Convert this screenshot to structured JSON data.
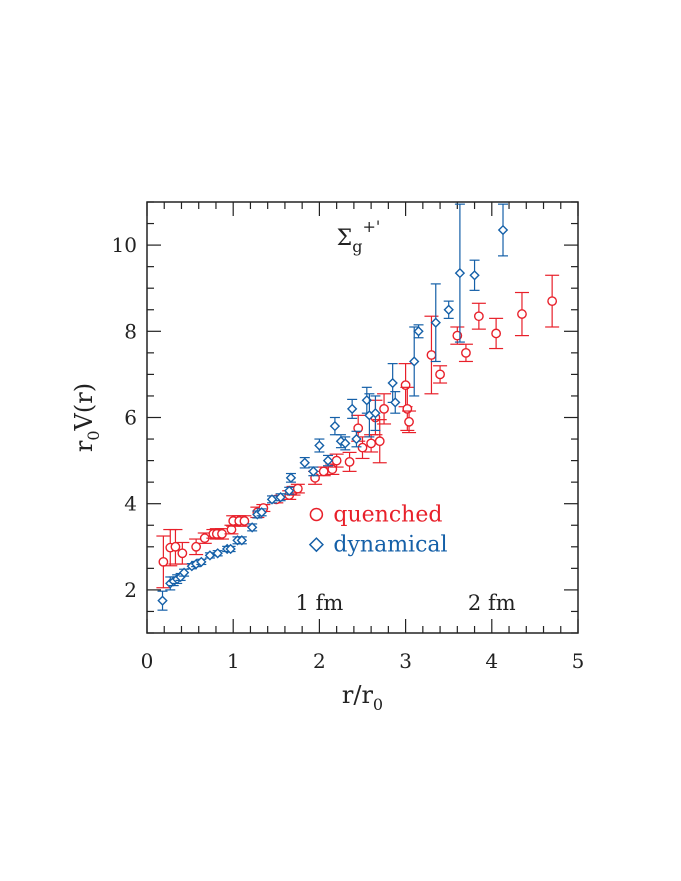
{
  "chart_data": {
    "type": "scatter",
    "xlim": [
      0,
      5
    ],
    "ylim": [
      1,
      11
    ],
    "x_ticks": [
      "0",
      "1",
      "2",
      "3",
      "4",
      "5"
    ],
    "y_ticks": [
      "2",
      "4",
      "6",
      "8",
      "10"
    ],
    "xlabel": {
      "main": "r/r",
      "sub": "0"
    },
    "ylabel": {
      "pre": "r",
      "sub": "0",
      "post": "V(r)"
    },
    "state_label": {
      "symbol": "Σ",
      "sub": "g",
      "sup": "+'"
    },
    "annotations": [
      {
        "text": "1 fm",
        "x": 2.0,
        "y": 1.7
      },
      {
        "text": "2 fm",
        "x": 4.0,
        "y": 1.7
      }
    ],
    "legend": {
      "position": "lower-center"
    },
    "colors": {
      "quenched": "#e8202a",
      "dynamical": "#1560a8",
      "axis": "#222222"
    },
    "series": [
      {
        "name": "quenched",
        "marker": "circle",
        "points": [
          [
            0.19,
            2.65,
            0.6
          ],
          [
            0.27,
            2.98,
            0.42
          ],
          [
            0.33,
            3.0,
            0.4
          ],
          [
            0.41,
            2.85,
            0.25
          ],
          [
            0.57,
            3.0,
            0.18
          ],
          [
            0.67,
            3.2,
            0.12
          ],
          [
            0.77,
            3.3,
            0.1
          ],
          [
            0.81,
            3.3,
            0.12
          ],
          [
            0.87,
            3.3,
            0.12
          ],
          [
            0.98,
            3.4,
            0.1
          ],
          [
            1.0,
            3.6,
            0.12
          ],
          [
            1.07,
            3.6,
            0.12
          ],
          [
            1.13,
            3.6,
            0.12
          ],
          [
            1.28,
            3.8,
            0.12
          ],
          [
            1.35,
            3.9,
            0.08
          ],
          [
            1.5,
            4.1,
            0.08
          ],
          [
            1.65,
            4.2,
            0.1
          ],
          [
            1.7,
            4.3,
            0.1
          ],
          [
            1.75,
            4.35,
            0.1
          ],
          [
            1.95,
            4.6,
            0.15
          ],
          [
            2.05,
            4.75,
            0.1
          ],
          [
            2.15,
            4.8,
            0.12
          ],
          [
            2.2,
            5.0,
            0.15
          ],
          [
            2.35,
            4.97,
            0.22
          ],
          [
            2.45,
            5.75,
            0.3
          ],
          [
            2.5,
            5.3,
            0.25
          ],
          [
            2.6,
            5.4,
            0.2
          ],
          [
            2.65,
            6.0,
            0.4
          ],
          [
            2.7,
            5.45,
            0.5
          ],
          [
            2.75,
            6.2,
            0.35
          ],
          [
            3.0,
            6.75,
            0.5
          ],
          [
            3.02,
            6.2,
            0.5
          ],
          [
            3.04,
            5.9,
            0.25
          ],
          [
            3.3,
            7.45,
            0.9
          ],
          [
            3.4,
            7.0,
            0.2
          ],
          [
            3.6,
            7.9,
            0.2
          ],
          [
            3.7,
            7.5,
            0.2
          ],
          [
            3.85,
            8.35,
            0.3
          ],
          [
            4.05,
            7.95,
            0.35
          ],
          [
            4.35,
            8.4,
            0.5
          ],
          [
            4.7,
            8.7,
            0.6
          ]
        ]
      },
      {
        "name": "dynamical",
        "marker": "diamond",
        "points": [
          [
            0.18,
            1.75,
            0.22
          ],
          [
            0.27,
            2.15,
            0.15
          ],
          [
            0.31,
            2.2,
            0.1
          ],
          [
            0.35,
            2.25,
            0.1
          ],
          [
            0.39,
            2.3,
            0.08
          ],
          [
            0.43,
            2.4,
            0.08
          ],
          [
            0.52,
            2.55,
            0.06
          ],
          [
            0.57,
            2.6,
            0.06
          ],
          [
            0.63,
            2.65,
            0.06
          ],
          [
            0.73,
            2.8,
            0.06
          ],
          [
            0.82,
            2.85,
            0.06
          ],
          [
            0.93,
            2.95,
            0.06
          ],
          [
            0.97,
            2.95,
            0.06
          ],
          [
            1.05,
            3.15,
            0.08
          ],
          [
            1.1,
            3.15,
            0.08
          ],
          [
            1.22,
            3.45,
            0.08
          ],
          [
            1.28,
            3.75,
            0.08
          ],
          [
            1.33,
            3.8,
            0.08
          ],
          [
            1.45,
            4.1,
            0.08
          ],
          [
            1.55,
            4.15,
            0.08
          ],
          [
            1.65,
            4.3,
            0.08
          ],
          [
            1.67,
            4.6,
            0.1
          ],
          [
            1.83,
            4.95,
            0.12
          ],
          [
            1.93,
            4.75,
            0.1
          ],
          [
            2.0,
            5.35,
            0.15
          ],
          [
            2.1,
            5.0,
            0.12
          ],
          [
            2.18,
            5.8,
            0.2
          ],
          [
            2.25,
            5.45,
            0.15
          ],
          [
            2.3,
            5.4,
            0.15
          ],
          [
            2.38,
            6.2,
            0.22
          ],
          [
            2.43,
            5.5,
            0.18
          ],
          [
            2.55,
            6.4,
            0.3
          ],
          [
            2.58,
            6.05,
            0.5
          ],
          [
            2.65,
            6.1,
            0.4
          ],
          [
            2.85,
            6.8,
            0.45
          ],
          [
            2.88,
            6.35,
            0.25
          ],
          [
            3.1,
            7.3,
            0.8
          ],
          [
            3.15,
            8.0,
            0.15
          ],
          [
            3.35,
            8.2,
            0.9
          ],
          [
            3.5,
            8.5,
            0.2
          ],
          [
            3.63,
            9.35,
            1.6
          ],
          [
            3.8,
            9.3,
            0.35
          ],
          [
            4.13,
            10.35,
            0.6
          ]
        ]
      }
    ]
  }
}
